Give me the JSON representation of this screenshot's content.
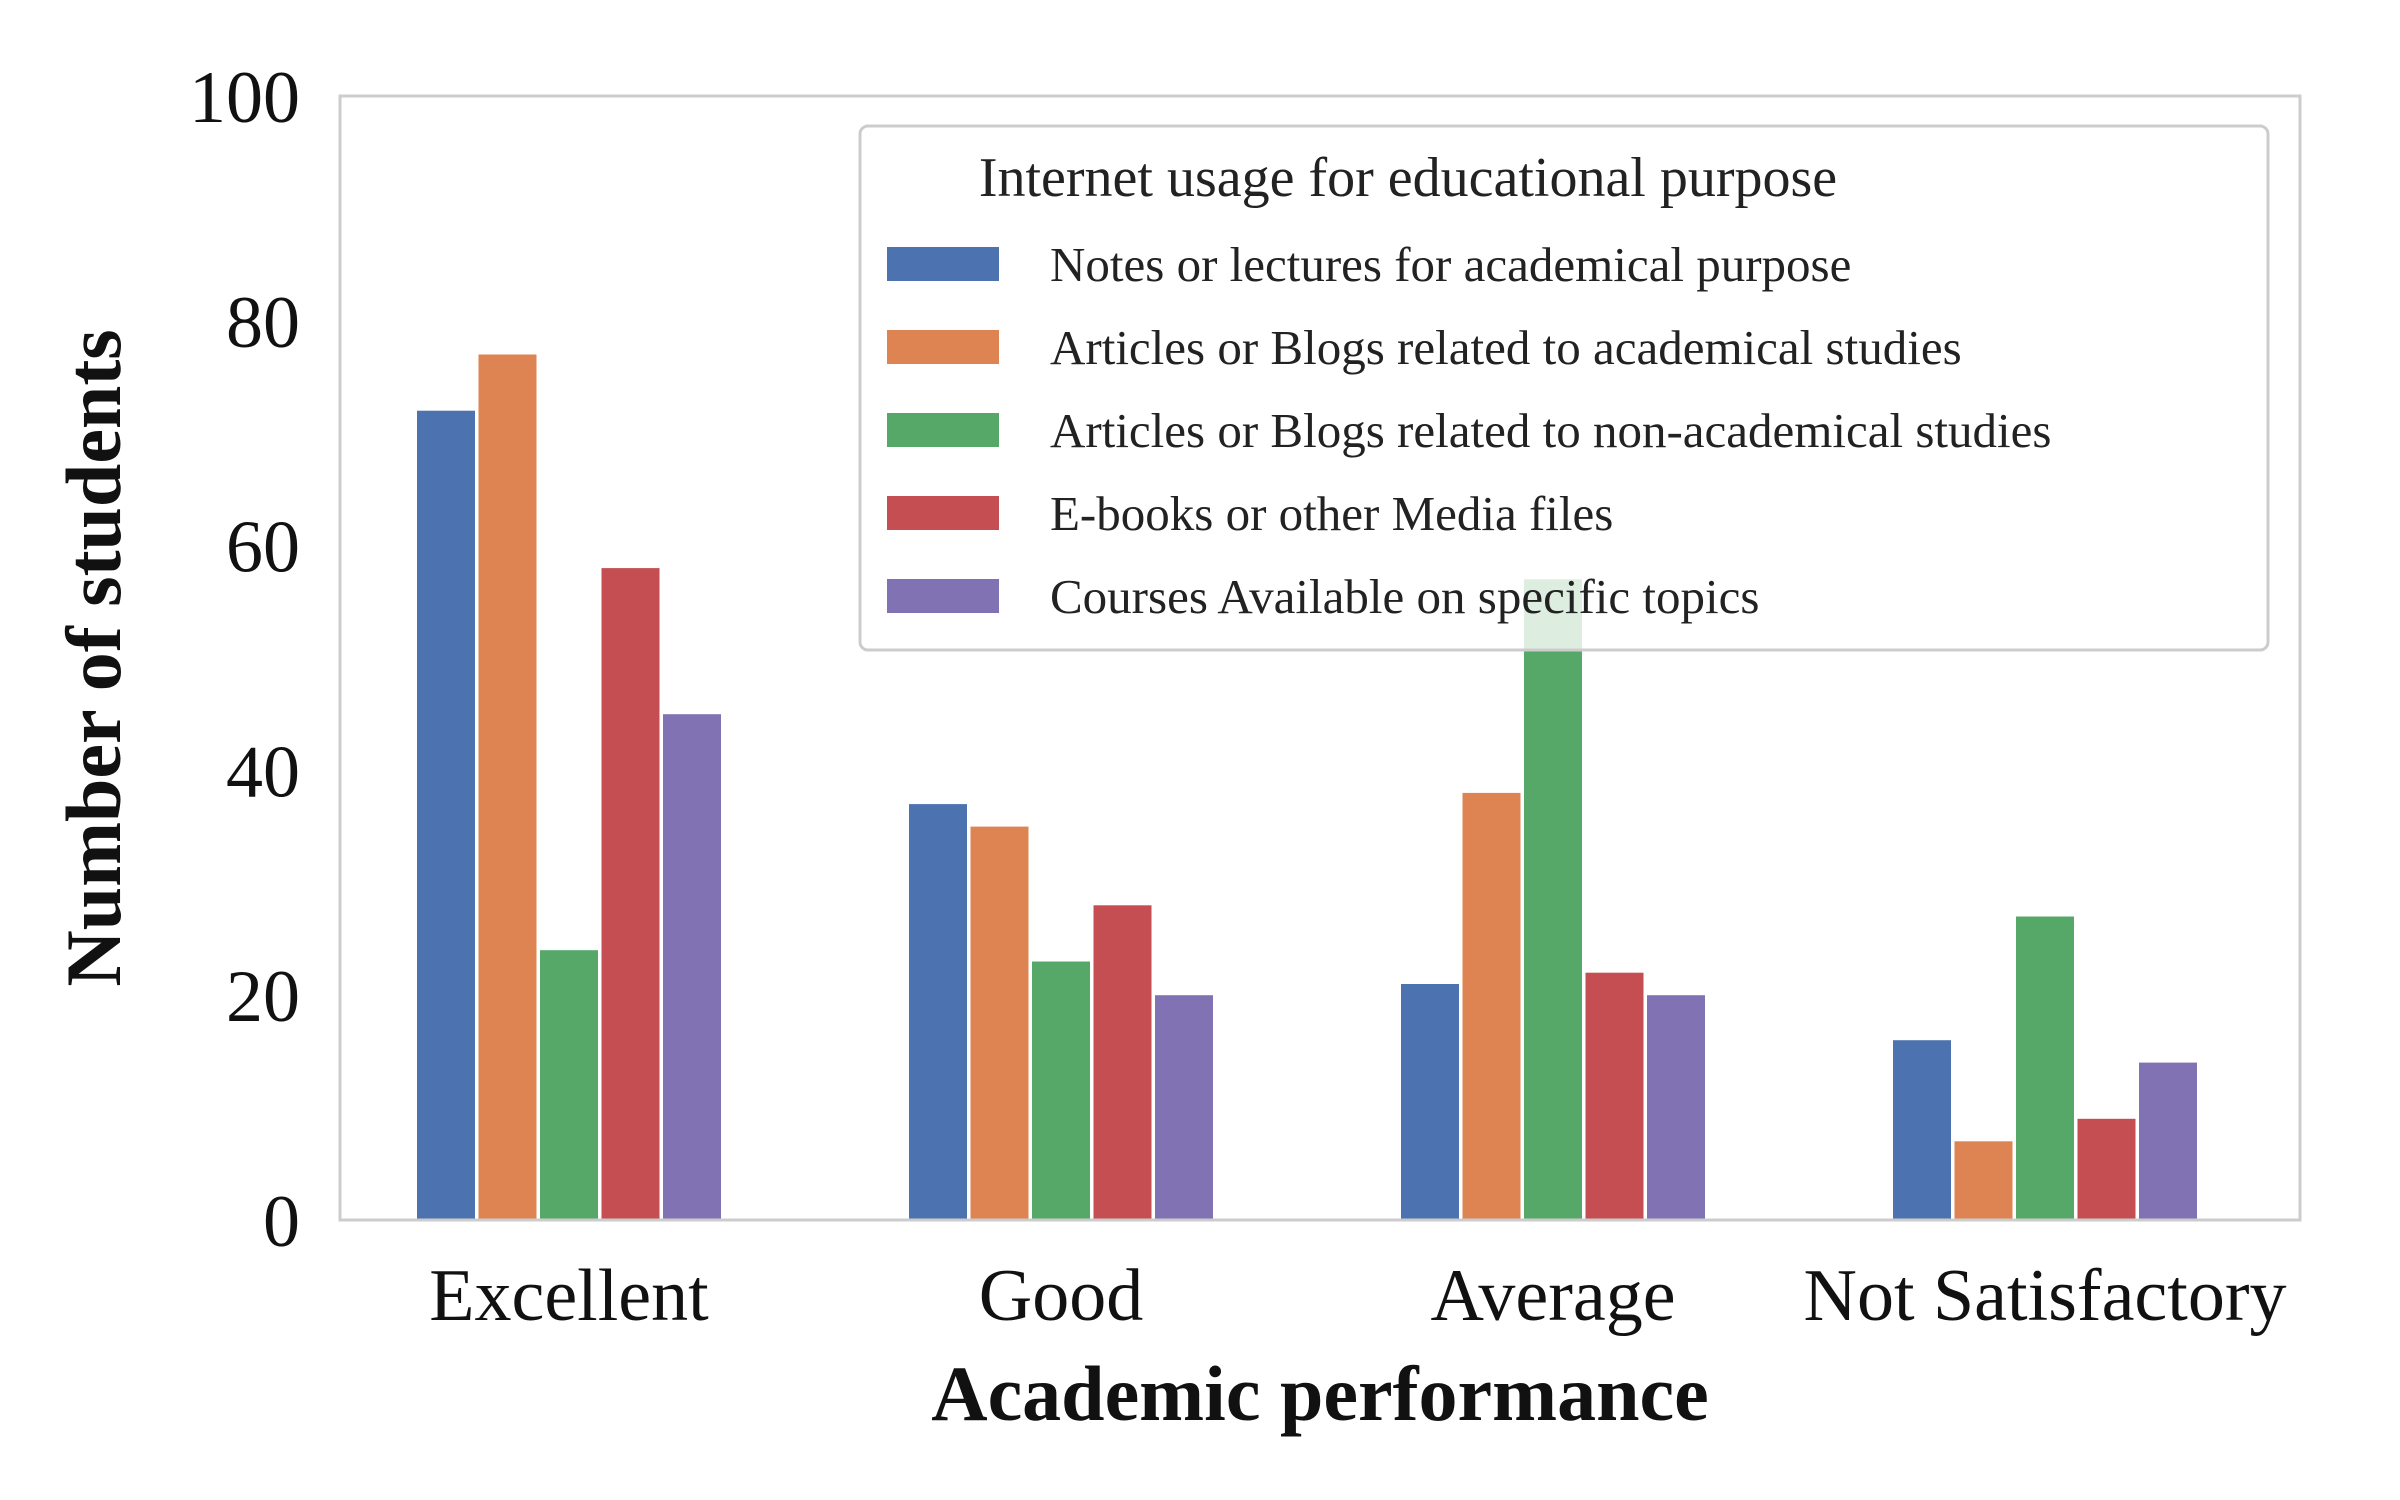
{
  "chart_data": {
    "type": "bar",
    "title": "",
    "xlabel": "Academic performance",
    "ylabel": "Number of students",
    "ylim": [
      0,
      100
    ],
    "yticks": [
      0,
      20,
      40,
      60,
      80,
      100
    ],
    "grid": false,
    "legend_title": "Internet usage for educational purpose",
    "legend_position": "top-right",
    "categories": [
      "Excellent",
      "Good",
      "Average",
      "Not Satisfactory"
    ],
    "series": [
      {
        "name": "Notes or lectures for academical purpose",
        "color": "#4c72b0",
        "values": [
          72,
          37,
          21,
          16
        ]
      },
      {
        "name": "Articles or Blogs related to academical studies",
        "color": "#dd8452",
        "values": [
          77,
          35,
          38,
          7
        ]
      },
      {
        "name": "Articles or Blogs related to non-academical studies",
        "color": "#55a868",
        "values": [
          24,
          23,
          57,
          27
        ]
      },
      {
        "name": "E-books or other Media files",
        "color": "#c44e52",
        "values": [
          58,
          28,
          22,
          9
        ]
      },
      {
        "name": "Courses Available on specific topics",
        "color": "#8172b3",
        "values": [
          45,
          20,
          20,
          14
        ]
      }
    ]
  }
}
